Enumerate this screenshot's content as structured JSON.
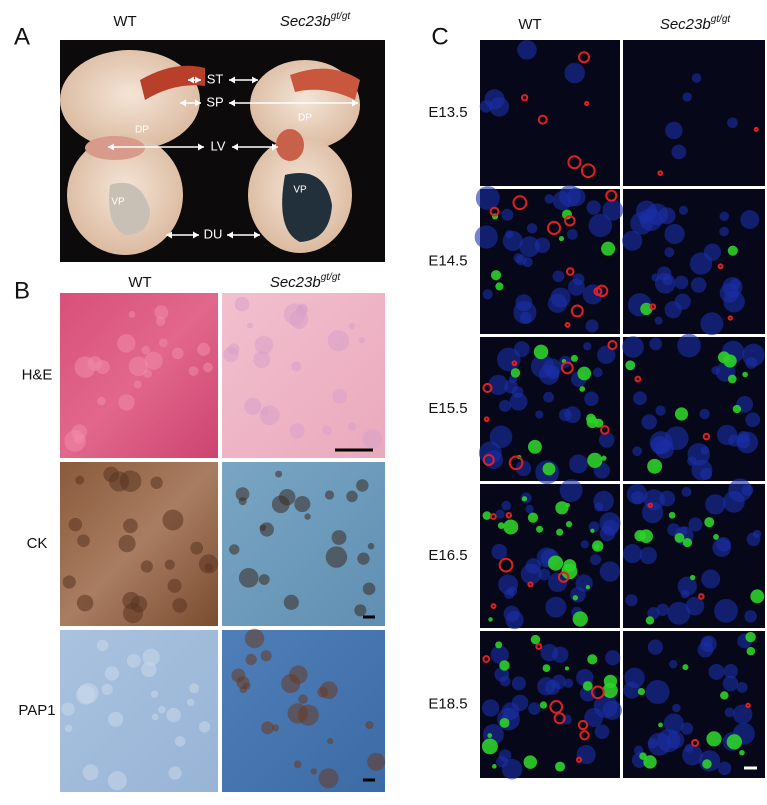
{
  "panel_a": {
    "label": "A",
    "columns": [
      {
        "text": "WT"
      },
      {
        "text": "Sec23b",
        "sup": "gt/gt"
      }
    ],
    "annotations": {
      "st": "ST",
      "sp": "SP",
      "lv": "LV",
      "du": "DU"
    },
    "organ_labels": [
      "DP",
      "VP",
      "DP",
      "VP"
    ]
  },
  "panel_b": {
    "label": "B",
    "columns": [
      {
        "text": "WT"
      },
      {
        "text": "Sec23b",
        "sup": "gt/gt"
      }
    ],
    "rows": [
      "H&E",
      "CK",
      "PAP1"
    ]
  },
  "panel_c": {
    "label": "C",
    "columns": [
      {
        "text": "WT"
      },
      {
        "text": "Sec23b",
        "sup": "gt/gt"
      }
    ],
    "rows": [
      "E13.5",
      "E14.5",
      "E15.5",
      "E16.5",
      "E18.5"
    ]
  }
}
